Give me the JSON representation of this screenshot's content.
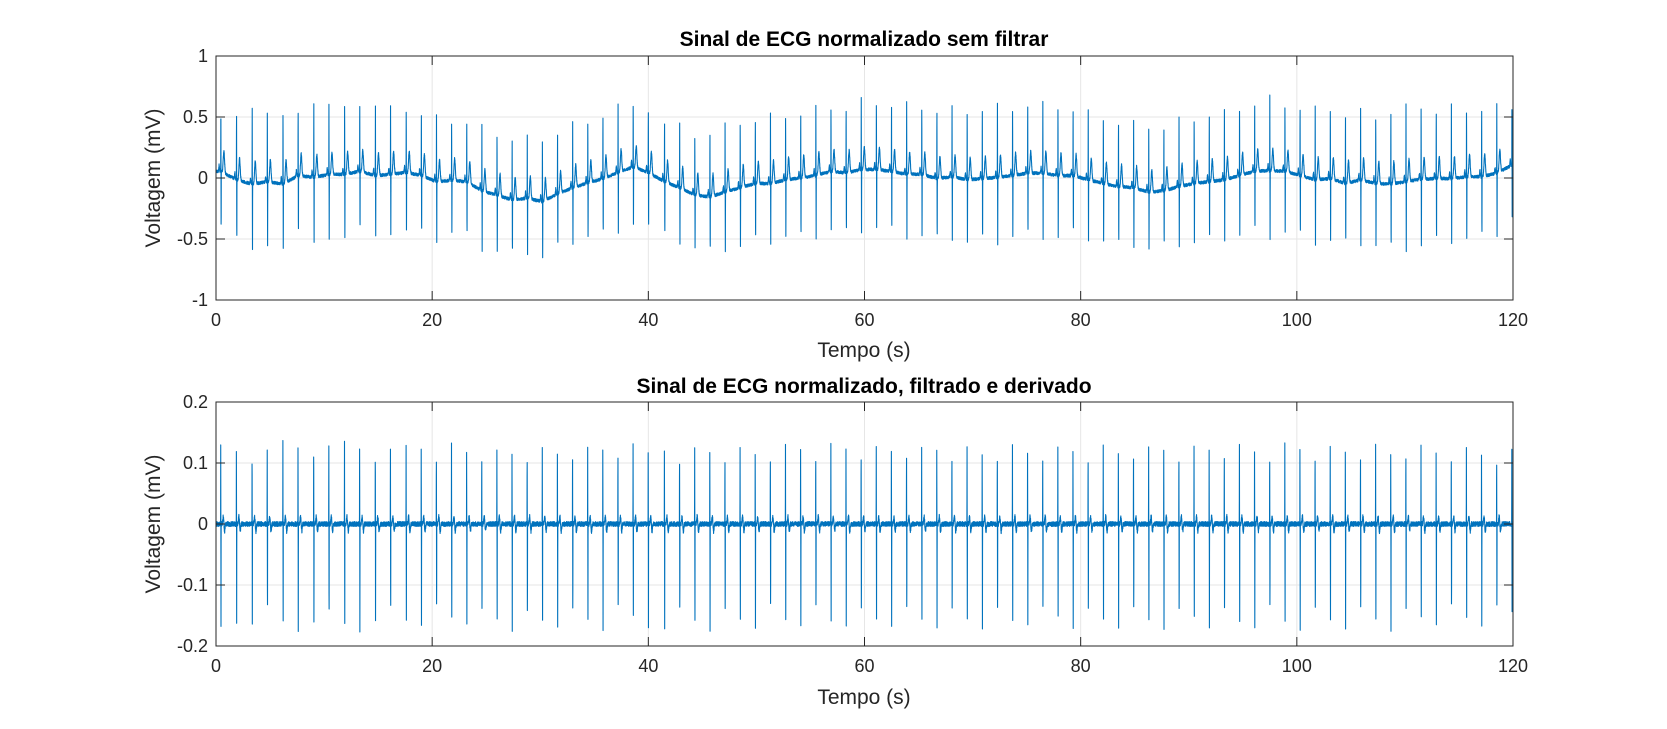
{
  "chart_data": [
    {
      "type": "line",
      "title": "Sinal de ECG normalizado sem filtrar",
      "xlabel": "Tempo (s)",
      "ylabel": "Voltagem (mV)",
      "xlim": [
        0,
        120
      ],
      "ylim": [
        -1,
        1
      ],
      "xticks": [
        0,
        20,
        40,
        60,
        80,
        100,
        120
      ],
      "yticks": [
        -1,
        -0.5,
        0,
        0.5,
        1
      ],
      "xtick_labels": [
        "0",
        "20",
        "40",
        "60",
        "80",
        "100",
        "120"
      ],
      "ytick_labels": [
        "-1",
        "-0.5",
        "0",
        "0.5",
        "1"
      ],
      "grid": true,
      "series_color": "#0072BD",
      "beats": [
        [
          0.45,
          0.62,
          -0.45
        ],
        [
          1.9,
          0.58,
          -0.55
        ],
        [
          3.35,
          0.58,
          -0.62
        ],
        [
          4.75,
          0.55,
          -0.55
        ],
        [
          6.2,
          0.58,
          -0.62
        ],
        [
          7.6,
          0.6,
          -0.5
        ],
        [
          9.05,
          0.62,
          -0.55
        ],
        [
          10.45,
          0.62,
          -0.5
        ],
        [
          11.9,
          0.64,
          -0.52
        ],
        [
          13.3,
          0.65,
          -0.48
        ],
        [
          14.75,
          0.6,
          -0.5
        ],
        [
          16.15,
          0.6,
          -0.48
        ],
        [
          17.6,
          0.6,
          -0.45
        ],
        [
          19.0,
          0.58,
          -0.48
        ],
        [
          20.4,
          0.52,
          -0.52
        ],
        [
          21.8,
          0.5,
          -0.48
        ],
        [
          23.2,
          0.5,
          -0.5
        ],
        [
          24.6,
          0.45,
          -0.6
        ],
        [
          26.0,
          0.4,
          -0.62
        ],
        [
          27.4,
          0.35,
          -0.65
        ],
        [
          28.8,
          0.35,
          -0.62
        ],
        [
          30.2,
          0.35,
          -0.68
        ],
        [
          31.6,
          0.4,
          -0.6
        ],
        [
          33.0,
          0.45,
          -0.55
        ],
        [
          34.4,
          0.5,
          -0.52
        ],
        [
          35.8,
          0.55,
          -0.5
        ],
        [
          37.2,
          0.6,
          -0.45
        ],
        [
          38.6,
          0.66,
          -0.42
        ],
        [
          40.0,
          0.6,
          -0.45
        ],
        [
          41.5,
          0.5,
          -0.5
        ],
        [
          42.9,
          0.45,
          -0.55
        ],
        [
          44.3,
          0.38,
          -0.6
        ],
        [
          45.7,
          0.4,
          -0.65
        ],
        [
          47.1,
          0.45,
          -0.62
        ],
        [
          48.5,
          0.5,
          -0.6
        ],
        [
          49.9,
          0.52,
          -0.55
        ],
        [
          51.3,
          0.52,
          -0.55
        ],
        [
          52.7,
          0.55,
          -0.52
        ],
        [
          54.1,
          0.58,
          -0.52
        ],
        [
          55.5,
          0.6,
          -0.5
        ],
        [
          56.9,
          0.62,
          -0.45
        ],
        [
          58.3,
          0.62,
          -0.48
        ],
        [
          59.7,
          0.65,
          -0.45
        ],
        [
          61.1,
          0.65,
          -0.45
        ],
        [
          62.5,
          0.65,
          -0.48
        ],
        [
          63.9,
          0.62,
          -0.5
        ],
        [
          65.3,
          0.62,
          -0.5
        ],
        [
          66.7,
          0.6,
          -0.55
        ],
        [
          68.1,
          0.6,
          -0.52
        ],
        [
          69.5,
          0.58,
          -0.55
        ],
        [
          70.9,
          0.6,
          -0.55
        ],
        [
          72.3,
          0.62,
          -0.55
        ],
        [
          73.7,
          0.62,
          -0.52
        ],
        [
          75.1,
          0.64,
          -0.5
        ],
        [
          76.5,
          0.64,
          -0.5
        ],
        [
          77.9,
          0.62,
          -0.52
        ],
        [
          79.3,
          0.6,
          -0.5
        ],
        [
          80.7,
          0.55,
          -0.52
        ],
        [
          82.1,
          0.52,
          -0.55
        ],
        [
          83.5,
          0.5,
          -0.58
        ],
        [
          84.9,
          0.48,
          -0.58
        ],
        [
          86.3,
          0.45,
          -0.62
        ],
        [
          87.7,
          0.45,
          -0.6
        ],
        [
          89.1,
          0.5,
          -0.58
        ],
        [
          90.5,
          0.52,
          -0.55
        ],
        [
          91.9,
          0.55,
          -0.55
        ],
        [
          93.3,
          0.55,
          -0.52
        ],
        [
          94.7,
          0.6,
          -0.5
        ],
        [
          96.1,
          0.65,
          -0.48
        ],
        [
          97.5,
          0.68,
          -0.5
        ],
        [
          98.9,
          0.65,
          -0.48
        ],
        [
          100.3,
          0.62,
          -0.52
        ],
        [
          101.7,
          0.58,
          -0.55
        ],
        [
          103.1,
          0.6,
          -0.55
        ],
        [
          104.5,
          0.55,
          -0.58
        ],
        [
          105.9,
          0.58,
          -0.55
        ],
        [
          107.3,
          0.55,
          -0.58
        ],
        [
          108.7,
          0.58,
          -0.62
        ],
        [
          110.1,
          0.6,
          -0.6
        ],
        [
          111.5,
          0.62,
          -0.58
        ],
        [
          112.9,
          0.6,
          -0.55
        ],
        [
          114.3,
          0.6,
          -0.55
        ],
        [
          115.7,
          0.6,
          -0.52
        ],
        [
          117.1,
          0.6,
          -0.52
        ],
        [
          118.5,
          0.62,
          -0.48
        ],
        [
          119.9,
          0.62,
          -0.35
        ]
      ]
    },
    {
      "type": "line",
      "title": "Sinal de ECG normalizado, filtrado e derivado",
      "xlabel": "Tempo (s)",
      "ylabel": "Voltagem (mV)",
      "xlim": [
        0,
        120
      ],
      "ylim": [
        -0.2,
        0.2
      ],
      "xticks": [
        0,
        20,
        40,
        60,
        80,
        100,
        120
      ],
      "yticks": [
        -0.2,
        -0.1,
        0,
        0.1,
        0.2
      ],
      "xtick_labels": [
        "0",
        "20",
        "40",
        "60",
        "80",
        "100",
        "120"
      ],
      "ytick_labels": [
        "-0.2",
        "-0.1",
        "0",
        "0.1",
        "0.2"
      ],
      "grid": true,
      "series_color": "#0072BD",
      "beats": [
        [
          0.45,
          0.132,
          -0.168
        ],
        [
          1.9,
          0.132,
          -0.165
        ],
        [
          3.35,
          0.13,
          -0.178
        ],
        [
          4.75,
          0.135,
          -0.17
        ],
        [
          6.2,
          0.137,
          -0.18
        ],
        [
          7.6,
          0.135,
          -0.175
        ],
        [
          9.05,
          0.14,
          -0.178
        ],
        [
          10.45,
          0.142,
          -0.182
        ],
        [
          11.9,
          0.14,
          -0.18
        ],
        [
          13.3,
          0.138,
          -0.178
        ],
        [
          14.75,
          0.135,
          -0.175
        ],
        [
          16.15,
          0.135,
          -0.175
        ],
        [
          17.6,
          0.132,
          -0.172
        ],
        [
          19.0,
          0.132,
          -0.17
        ],
        [
          20.4,
          0.13,
          -0.168
        ],
        [
          21.8,
          0.13,
          -0.17
        ],
        [
          23.2,
          0.128,
          -0.168
        ],
        [
          24.6,
          0.125,
          -0.172
        ],
        [
          26.0,
          0.125,
          -0.175
        ],
        [
          27.4,
          0.128,
          -0.178
        ],
        [
          28.8,
          0.13,
          -0.175
        ],
        [
          30.2,
          0.13,
          -0.172
        ],
        [
          31.6,
          0.128,
          -0.17
        ],
        [
          33.0,
          0.13,
          -0.172
        ],
        [
          34.4,
          0.13,
          -0.17
        ],
        [
          35.8,
          0.132,
          -0.172
        ],
        [
          37.2,
          0.132,
          -0.17
        ],
        [
          38.6,
          0.13,
          -0.168
        ],
        [
          40.0,
          0.13,
          -0.17
        ],
        [
          41.5,
          0.13,
          -0.172
        ],
        [
          42.9,
          0.128,
          -0.175
        ],
        [
          44.3,
          0.128,
          -0.172
        ],
        [
          45.7,
          0.13,
          -0.175
        ],
        [
          47.1,
          0.13,
          -0.172
        ],
        [
          48.5,
          0.128,
          -0.17
        ],
        [
          49.9,
          0.13,
          -0.17
        ],
        [
          51.3,
          0.13,
          -0.168
        ],
        [
          52.7,
          0.132,
          -0.17
        ],
        [
          54.1,
          0.132,
          -0.168
        ],
        [
          55.5,
          0.13,
          -0.17
        ],
        [
          56.9,
          0.13,
          -0.172
        ],
        [
          58.3,
          0.132,
          -0.17
        ],
        [
          59.7,
          0.132,
          -0.172
        ],
        [
          61.1,
          0.13,
          -0.17
        ],
        [
          62.5,
          0.13,
          -0.168
        ],
        [
          63.9,
          0.132,
          -0.17
        ],
        [
          65.3,
          0.13,
          -0.172
        ],
        [
          66.7,
          0.13,
          -0.17
        ],
        [
          68.1,
          0.132,
          -0.172
        ],
        [
          69.5,
          0.13,
          -0.17
        ],
        [
          70.9,
          0.13,
          -0.172
        ],
        [
          72.3,
          0.132,
          -0.17
        ],
        [
          73.7,
          0.132,
          -0.172
        ],
        [
          75.1,
          0.132,
          -0.17
        ],
        [
          76.5,
          0.132,
          -0.172
        ],
        [
          77.9,
          0.13,
          -0.17
        ],
        [
          79.3,
          0.13,
          -0.172
        ],
        [
          80.7,
          0.13,
          -0.17
        ],
        [
          82.1,
          0.128,
          -0.172
        ],
        [
          83.5,
          0.13,
          -0.175
        ],
        [
          84.9,
          0.13,
          -0.172
        ],
        [
          86.3,
          0.128,
          -0.175
        ],
        [
          87.7,
          0.13,
          -0.175
        ],
        [
          89.1,
          0.13,
          -0.172
        ],
        [
          90.5,
          0.13,
          -0.172
        ],
        [
          91.9,
          0.132,
          -0.172
        ],
        [
          93.3,
          0.132,
          -0.175
        ],
        [
          94.7,
          0.132,
          -0.175
        ],
        [
          96.1,
          0.132,
          -0.175
        ],
        [
          97.5,
          0.13,
          -0.172
        ],
        [
          98.9,
          0.13,
          -0.175
        ],
        [
          100.3,
          0.132,
          -0.172
        ],
        [
          101.7,
          0.13,
          -0.175
        ],
        [
          103.1,
          0.13,
          -0.175
        ],
        [
          104.5,
          0.128,
          -0.172
        ],
        [
          105.9,
          0.128,
          -0.175
        ],
        [
          107.3,
          0.13,
          -0.172
        ],
        [
          108.7,
          0.13,
          -0.175
        ],
        [
          110.1,
          0.13,
          -0.172
        ],
        [
          111.5,
          0.128,
          -0.172
        ],
        [
          112.9,
          0.128,
          -0.17
        ],
        [
          114.3,
          0.128,
          -0.17
        ],
        [
          115.7,
          0.125,
          -0.168
        ],
        [
          117.1,
          0.125,
          -0.168
        ],
        [
          118.5,
          0.125,
          -0.165
        ],
        [
          119.9,
          0.125,
          -0.16
        ]
      ]
    }
  ]
}
